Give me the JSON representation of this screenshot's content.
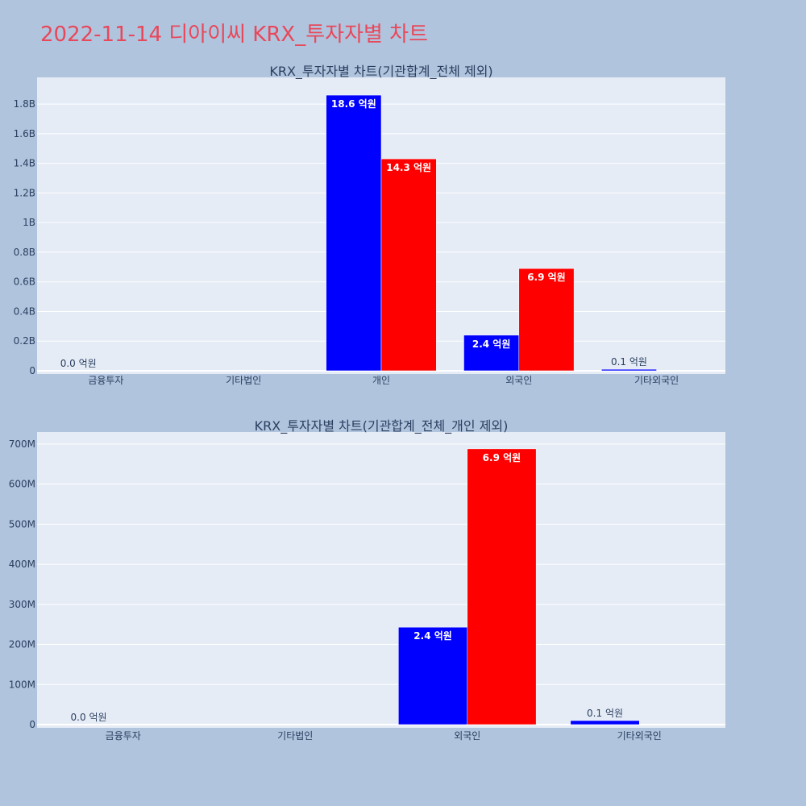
{
  "page": {
    "title": "2022-11-14 디아이씨 KRX_투자자별 차트"
  },
  "colors": {
    "background": "#b0c4de",
    "plot_background": "#e5ecf6",
    "buy": "#0000ff",
    "sell": "#ff0000",
    "title_text": "#e8485a",
    "axis_text": "#2a3f5f"
  },
  "chart_data": [
    {
      "type": "bar",
      "title": "KRX_투자자별 차트(기관합계_전체 제외)",
      "categories": [
        "금융투자",
        "기타법인",
        "개인",
        "외국인",
        "기타외국인"
      ],
      "series": [
        {
          "color": "#0000ff",
          "values": [
            0,
            0,
            1860000000,
            240000000,
            10000000
          ],
          "labels": [
            "0.0 억원",
            "",
            "18.6 억원",
            "2.4 억원",
            "0.1 억원"
          ]
        },
        {
          "color": "#ff0000",
          "values": [
            0,
            0,
            1430000000,
            690000000,
            0
          ],
          "labels": [
            "",
            "",
            "14.3 억원",
            "6.9 억원",
            ""
          ]
        }
      ],
      "ylim": [
        0,
        1980000000
      ],
      "yticks": [
        {
          "value": 0,
          "label": "0"
        },
        {
          "value": 200000000,
          "label": "0.2B"
        },
        {
          "value": 400000000,
          "label": "0.4B"
        },
        {
          "value": 600000000,
          "label": "0.6B"
        },
        {
          "value": 800000000,
          "label": "0.8B"
        },
        {
          "value": 1000000000,
          "label": "1B"
        },
        {
          "value": 1200000000,
          "label": "1.2B"
        },
        {
          "value": 1400000000,
          "label": "1.4B"
        },
        {
          "value": 1600000000,
          "label": "1.6B"
        },
        {
          "value": 1800000000,
          "label": "1.8B"
        }
      ],
      "grid": true,
      "legend": "none"
    },
    {
      "type": "bar",
      "title": "KRX_투자자별 차트(기관합계_전체_개인 제외)",
      "categories": [
        "금융투자",
        "기타법인",
        "외국인",
        "기타외국인"
      ],
      "series": [
        {
          "color": "#0000ff",
          "values": [
            0,
            0,
            243000000,
            10000000
          ],
          "labels": [
            "0.0 억원",
            "",
            "2.4 억원",
            "0.1 억원"
          ]
        },
        {
          "color": "#ff0000",
          "values": [
            0,
            0,
            688000000,
            0
          ],
          "labels": [
            "",
            "",
            "6.9 억원",
            ""
          ]
        }
      ],
      "ylim": [
        0,
        730000000
      ],
      "yticks": [
        {
          "value": 0,
          "label": "0"
        },
        {
          "value": 100000000,
          "label": "100M"
        },
        {
          "value": 200000000,
          "label": "200M"
        },
        {
          "value": 300000000,
          "label": "300M"
        },
        {
          "value": 400000000,
          "label": "400M"
        },
        {
          "value": 500000000,
          "label": "500M"
        },
        {
          "value": 600000000,
          "label": "600M"
        },
        {
          "value": 700000000,
          "label": "700M"
        }
      ],
      "grid": true,
      "legend": "none"
    }
  ]
}
